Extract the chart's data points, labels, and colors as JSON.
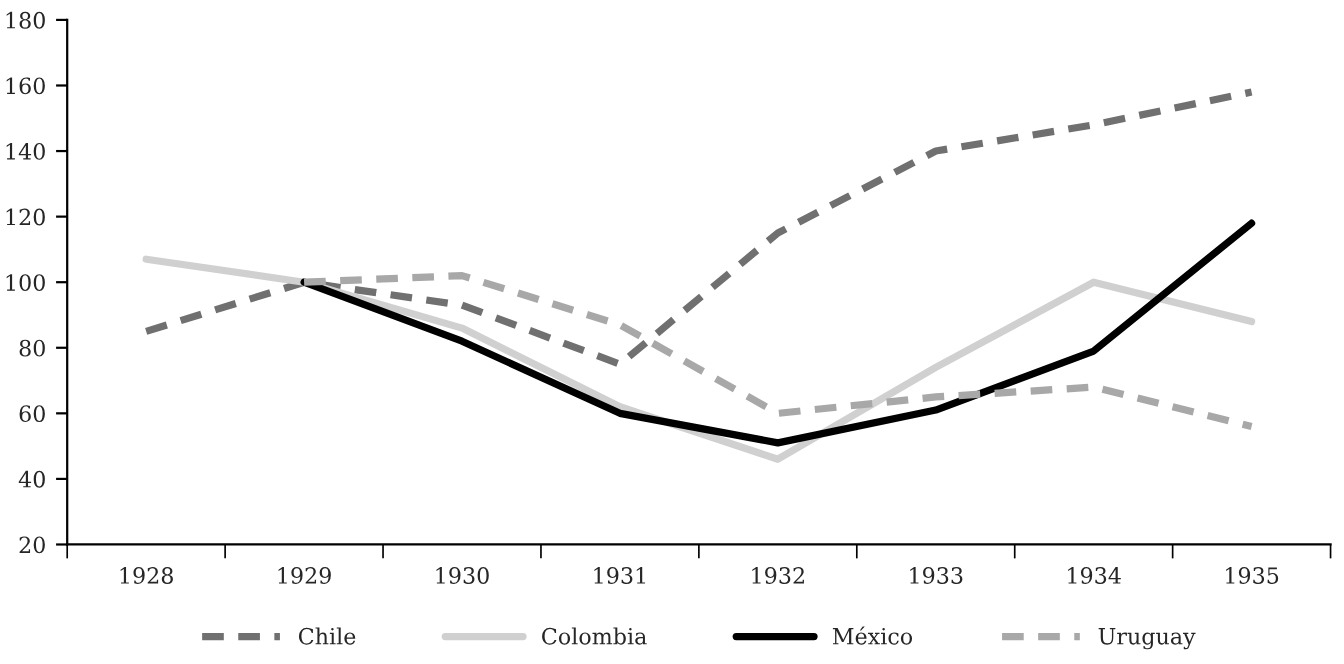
{
  "chart_data": {
    "type": "line",
    "categories": [
      "1928",
      "1929",
      "1930",
      "1931",
      "1932",
      "1933",
      "1934",
      "1935"
    ],
    "series": [
      {
        "name": "Chile",
        "color": "#707070",
        "line_style": "dashed",
        "values": [
          85,
          100,
          93,
          75,
          115,
          140,
          148,
          158
        ]
      },
      {
        "name": "Colombia",
        "color": "#d0d0d0",
        "line_style": "solid",
        "values": [
          107,
          100,
          86,
          62,
          46,
          74,
          100,
          88
        ]
      },
      {
        "name": "México",
        "color": "#000000",
        "line_style": "solid",
        "values": [
          null,
          100,
          82,
          60,
          51,
          61,
          79,
          118
        ]
      },
      {
        "name": "Uruguay",
        "color": "#a8a8a8",
        "line_style": "dashed",
        "values": [
          null,
          100,
          102,
          87,
          60,
          65,
          68,
          56
        ]
      }
    ],
    "ylim": [
      20,
      180
    ],
    "yticks": [
      20,
      40,
      60,
      80,
      100,
      120,
      140,
      160,
      180
    ],
    "grid": false,
    "legend": "bottom",
    "marker": "none"
  }
}
